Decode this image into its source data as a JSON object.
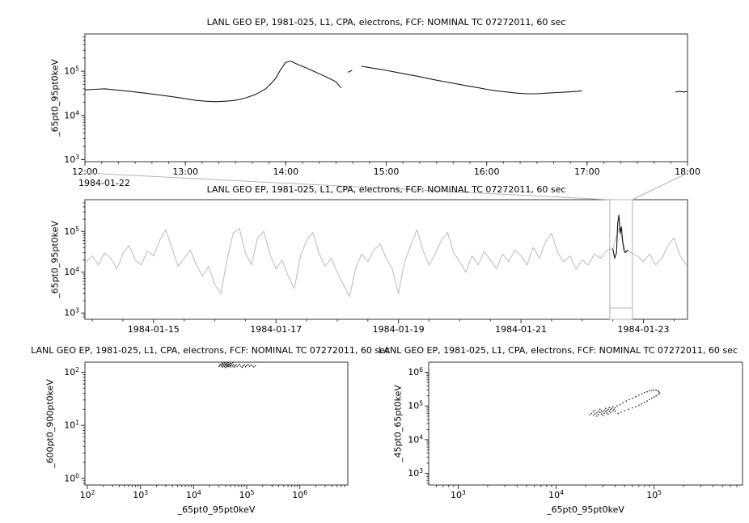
{
  "page": {
    "background": "#ffffff",
    "line_color": "#1a1a1a",
    "context_line_color": "#c0c0c0",
    "selection_color": "#b3b3b3"
  },
  "chart_data": [
    {
      "name": "zoom-timeseries",
      "type": "line",
      "title": "LANL GEO EP, 1981-025, L1, CPA, electrons, FCF: NOMINAL TC 07272011, 60 sec",
      "ylabel": "_65pt0_95pt0keV",
      "x_axis": {
        "scale": "linear",
        "min": 12,
        "max": 18,
        "ticks": [
          12,
          13,
          14,
          15,
          16,
          17,
          18
        ],
        "tick_labels": [
          "12:00",
          "13:00",
          "14:00",
          "15:00",
          "16:00",
          "17:00",
          "18:00"
        ],
        "minor_step": 0.16667,
        "context_label": "1984-01-22"
      },
      "y_axis": {
        "scale": "log",
        "min": 900,
        "max": 700000.0,
        "ticks": [
          1000.0,
          10000.0,
          100000.0
        ],
        "tick_labels": [
          "10^3",
          "10^4",
          "10^5"
        ]
      },
      "series": [
        {
          "name": "segment-1",
          "color": "#1a1a1a",
          "x": [
            12.0,
            12.1,
            12.2,
            12.3,
            12.4,
            12.5,
            12.6,
            12.7,
            12.8,
            12.9,
            13.0,
            13.1,
            13.2,
            13.3,
            13.4,
            13.5,
            13.6,
            13.7,
            13.8,
            13.85,
            13.9,
            13.95,
            14.0,
            14.05,
            14.1,
            14.2,
            14.3,
            14.4,
            14.5,
            14.55
          ],
          "y": [
            38000.0,
            39000.0,
            40000.0,
            38000.0,
            36000.0,
            34000.0,
            32000.0,
            30000.0,
            28000.0,
            26000.0,
            24000.0,
            22000.0,
            21000.0,
            20500.0,
            21000.0,
            22000.0,
            25000.0,
            30000.0,
            40000.0,
            52000.0,
            70000.0,
            110000.0,
            160000.0,
            170000.0,
            150000.0,
            120000.0,
            95000.0,
            75000.0,
            58000.0,
            42000.0
          ]
        },
        {
          "name": "segment-2",
          "color": "#1a1a1a",
          "x": [
            14.62,
            14.66
          ],
          "y": [
            95000.0,
            105000.0
          ]
        },
        {
          "name": "segment-3",
          "color": "#1a1a1a",
          "x": [
            14.75,
            14.8,
            14.9,
            15.0,
            15.1,
            15.2,
            15.3,
            15.4,
            15.5,
            15.6,
            15.7,
            15.8,
            15.9,
            16.0,
            16.1,
            16.2,
            16.3,
            16.4,
            16.5,
            16.6,
            16.7,
            16.8,
            16.9,
            16.95
          ],
          "y": [
            130000.0,
            125000.0,
            115000.0,
            105000.0,
            95000.0,
            86000.0,
            78000.0,
            70000.0,
            63000.0,
            57000.0,
            52000.0,
            47000.0,
            43000.0,
            39000.0,
            36000.0,
            34000.0,
            32000.0,
            31000.0,
            31000.0,
            32000.0,
            33000.0,
            34000.0,
            35000.0,
            36000.0
          ]
        },
        {
          "name": "segment-4",
          "color": "#1a1a1a",
          "x": [
            17.88,
            17.92,
            17.96,
            18.0
          ],
          "y": [
            34000.0,
            35000.0,
            34000.0,
            35000.0
          ]
        }
      ]
    },
    {
      "name": "context-timeseries",
      "type": "line",
      "title": "LANL GEO EP, 1981-025, L1, CPA, electrons, FCF: NOMINAL TC 07272011, 60 sec",
      "ylabel": "_65pt0_95pt0keV",
      "x_axis": {
        "scale": "linear",
        "min": 13.88,
        "max": 23.72,
        "ticks": [
          15,
          17,
          19,
          21,
          23
        ],
        "tick_labels": [
          "1984-01-15",
          "1984-01-17",
          "1984-01-19",
          "1984-01-21",
          "1984-01-23"
        ],
        "minor_step": 0.5
      },
      "y_axis": {
        "scale": "log",
        "min": 700,
        "max": 600000.0,
        "ticks": [
          1000.0,
          10000.0,
          100000.0
        ],
        "tick_labels": [
          "10^3",
          "10^4",
          "10^5"
        ]
      },
      "series": [
        {
          "name": "context-full",
          "color": "#c0c0c0",
          "x_start": 13.9,
          "x_step": 0.1,
          "y": [
            18000.0,
            25000.0,
            15000.0,
            30000.0,
            22000.0,
            12000.0,
            28000.0,
            45000.0,
            20000.0,
            15000.0,
            33000.0,
            25000.0,
            60000.0,
            110000.0,
            40000.0,
            14000.0,
            22000.0,
            35000.0,
            15000.0,
            8000.0,
            14000.0,
            5000.0,
            3000.0,
            20000.0,
            90000.0,
            120000.0,
            30000.0,
            15000.0,
            70000.0,
            100000.0,
            28000.0,
            12000.0,
            20000.0,
            8000.0,
            4000.0,
            25000.0,
            60000.0,
            95000.0,
            30000.0,
            14000.0,
            22000.0,
            10000.0,
            5000.0,
            2500.0,
            12000.0,
            28000.0,
            18000.0,
            35000.0,
            50000.0,
            22000.0,
            12000.0,
            3000.0,
            18000.0,
            45000.0,
            110000.0,
            35000.0,
            15000.0,
            28000.0,
            60000.0,
            95000.0,
            30000.0,
            18000.0,
            10000.0,
            25000.0,
            15000.0,
            32000.0,
            20000.0,
            12000.0,
            28000.0,
            18000.0,
            35000.0,
            25000.0,
            15000.0,
            40000.0,
            22000.0,
            55000.0,
            90000.0,
            30000.0,
            18000.0,
            25000.0,
            12000.0,
            20000.0,
            15000.0,
            28000.0,
            22000.0,
            35000.0,
            38000.0,
            120000.0,
            35000.0,
            30000.0,
            25000.0,
            18000.0,
            28000.0,
            15000.0,
            22000.0,
            45000.0,
            70000.0,
            25000.0,
            15000.0
          ]
        },
        {
          "name": "highlight-zoom-range",
          "color": "#111111",
          "x": [
            22.5,
            22.53,
            22.56,
            22.58,
            22.6,
            22.62,
            22.64,
            22.66,
            22.68,
            22.7,
            22.72,
            22.75
          ],
          "y": [
            38000.0,
            22000.0,
            30000.0,
            160000.0,
            250000.0,
            90000.0,
            130000.0,
            60000.0,
            35000.0,
            30000.0,
            32000.0,
            35000.0
          ]
        }
      ],
      "selection": {
        "x_min": 22.45,
        "x_max": 22.82,
        "color": "#b3b3b3"
      }
    },
    {
      "name": "scatter-600-900",
      "type": "scatter",
      "title": "LANL GEO EP, 1981-025, L1, CPA, electrons, FCF: NOMINAL TC 07272011, 60 sec",
      "xlabel": "_65pt0_95pt0keV",
      "ylabel": "_600pt0_900pt0keV",
      "point_color": "#1a1a1a",
      "x_axis": {
        "scale": "log",
        "min": 90,
        "max": 8000000.0,
        "ticks": [
          100.0,
          1000.0,
          10000.0,
          100000.0,
          1000000.0
        ],
        "tick_labels": [
          "10^2",
          "10^3",
          "10^4",
          "10^5",
          "10^6"
        ]
      },
      "y_axis": {
        "scale": "log",
        "min": 0.75,
        "max": 155,
        "ticks": [
          1,
          10,
          100
        ],
        "tick_labels": [
          "10^0",
          "10^1",
          "10^2"
        ]
      },
      "points": [
        [
          30000.0,
          128
        ],
        [
          31000.0,
          135
        ],
        [
          32000.0,
          142
        ],
        [
          33000.0,
          130
        ],
        [
          34000.0,
          138
        ],
        [
          35000.0,
          145
        ],
        [
          35000.0,
          125
        ],
        [
          36000.0,
          133
        ],
        [
          37000.0,
          140
        ],
        [
          38000.0,
          128
        ],
        [
          39000.0,
          136
        ],
        [
          40000.0,
          143
        ],
        [
          40000.0,
          122
        ],
        [
          41000.0,
          131
        ],
        [
          42000.0,
          139
        ],
        [
          43000.0,
          127
        ],
        [
          44000.0,
          134
        ],
        [
          45000.0,
          141
        ],
        [
          46000.0,
          129
        ],
        [
          47000.0,
          137
        ],
        [
          48000.0,
          144
        ],
        [
          49000.0,
          126
        ],
        [
          50000.0,
          133
        ],
        [
          52000.0,
          140
        ],
        [
          54000.0,
          130
        ],
        [
          56000.0,
          137
        ],
        [
          58000.0,
          125
        ],
        [
          60000.0,
          132
        ],
        [
          63000.0,
          139
        ],
        [
          66000.0,
          128
        ],
        [
          70000.0,
          135
        ],
        [
          74000.0,
          142
        ],
        [
          78000.0,
          130
        ],
        [
          82000.0,
          124
        ],
        [
          86000.0,
          131
        ],
        [
          90000.0,
          138
        ],
        [
          95000.0,
          127
        ],
        [
          100000.0,
          134
        ],
        [
          106000.0,
          141
        ],
        [
          112000.0,
          129
        ],
        [
          120000.0,
          136
        ],
        [
          128000.0,
          131
        ],
        [
          136000.0,
          126
        ],
        [
          145000.0,
          133
        ],
        [
          42000.0,
          148
        ],
        [
          38000.0,
          150
        ],
        [
          45000.0,
          152
        ],
        [
          50000.0,
          147
        ],
        [
          55000.0,
          150
        ],
        [
          35000.0,
          148
        ]
      ]
    },
    {
      "name": "scatter-45-65",
      "type": "scatter",
      "title": "LANL GEO EP, 1981-025, L1, CPA, electrons, FCF: NOMINAL TC 07272011, 60 sec",
      "xlabel": "_65pt0_95pt0keV",
      "ylabel": "_45pt0_65pt0keV",
      "point_color": "#1a1a1a",
      "x_axis": {
        "scale": "log",
        "min": 500.0,
        "max": 800000.0,
        "ticks": [
          1000.0,
          10000.0,
          100000.0
        ],
        "tick_labels": [
          "10^3",
          "10^4",
          "10^5"
        ]
      },
      "y_axis": {
        "scale": "log",
        "min": 450.0,
        "max": 2000000.0,
        "ticks": [
          1000.0,
          10000.0,
          100000.0,
          1000000.0
        ],
        "tick_labels": [
          "10^3",
          "10^4",
          "10^5",
          "10^6"
        ]
      },
      "points": [
        [
          22000.0,
          55000.0
        ],
        [
          23000.0,
          60000.0
        ],
        [
          24000.0,
          52000.0
        ],
        [
          24000.0,
          68000.0
        ],
        [
          25000.0,
          58000.0
        ],
        [
          25000.0,
          75000.0
        ],
        [
          26000.0,
          63000.0
        ],
        [
          26000.0,
          50000.0
        ],
        [
          27000.0,
          70000.0
        ],
        [
          27000.0,
          56000.0
        ],
        [
          28000.0,
          64000.0
        ],
        [
          28000.0,
          80000.0
        ],
        [
          29000.0,
          58000.0
        ],
        [
          29000.0,
          72000.0
        ],
        [
          30000.0,
          66000.0
        ],
        [
          30000.0,
          52000.0
        ],
        [
          31000.0,
          75000.0
        ],
        [
          31000.0,
          60000.0
        ],
        [
          32000.0,
          68000.0
        ],
        [
          32000.0,
          85000.0
        ],
        [
          33000.0,
          62000.0
        ],
        [
          33000.0,
          74000.0
        ],
        [
          34000.0,
          57000.0
        ],
        [
          34000.0,
          80000.0
        ],
        [
          35000.0,
          70000.0
        ],
        [
          35000.0,
          90000.0
        ],
        [
          36000.0,
          64000.0
        ],
        [
          36000.0,
          78000.0
        ],
        [
          37000.0,
          85000.0
        ],
        [
          38000.0,
          72000.0
        ],
        [
          38000.0,
          95000.0
        ],
        [
          39000.0,
          80000.0
        ],
        [
          40000.0,
          88000.0
        ],
        [
          40000.0,
          70000.0
        ],
        [
          42000.0,
          100000.0
        ],
        [
          45000.0,
          110000.0
        ],
        [
          48000.0,
          125000.0
        ],
        [
          52000.0,
          140000.0
        ],
        [
          56000.0,
          155000.0
        ],
        [
          60000.0,
          170000.0
        ],
        [
          65000.0,
          190000.0
        ],
        [
          70000.0,
          210000.0
        ],
        [
          75000.0,
          230000.0
        ],
        [
          80000.0,
          250000.0
        ],
        [
          85000.0,
          265000.0
        ],
        [
          90000.0,
          280000.0
        ],
        [
          95000.0,
          290000.0
        ],
        [
          100000.0,
          300000.0
        ],
        [
          105000.0,
          295000.0
        ],
        [
          110000.0,
          280000.0
        ],
        [
          112000.0,
          260000.0
        ],
        [
          114000.0,
          240000.0
        ],
        [
          110000.0,
          220000.0
        ],
        [
          105000.0,
          200000.0
        ],
        [
          100000.0,
          185000.0
        ],
        [
          95000.0,
          170000.0
        ],
        [
          90000.0,
          155000.0
        ],
        [
          85000.0,
          140000.0
        ],
        [
          80000.0,
          128000.0
        ],
        [
          75000.0,
          115000.0
        ],
        [
          70000.0,
          105000.0
        ],
        [
          65000.0,
          95000.0
        ],
        [
          60000.0,
          88000.0
        ],
        [
          55000.0,
          80000.0
        ],
        [
          50000.0,
          72000.0
        ],
        [
          46000.0,
          65000.0
        ],
        [
          43000.0,
          60000.0
        ]
      ]
    }
  ]
}
